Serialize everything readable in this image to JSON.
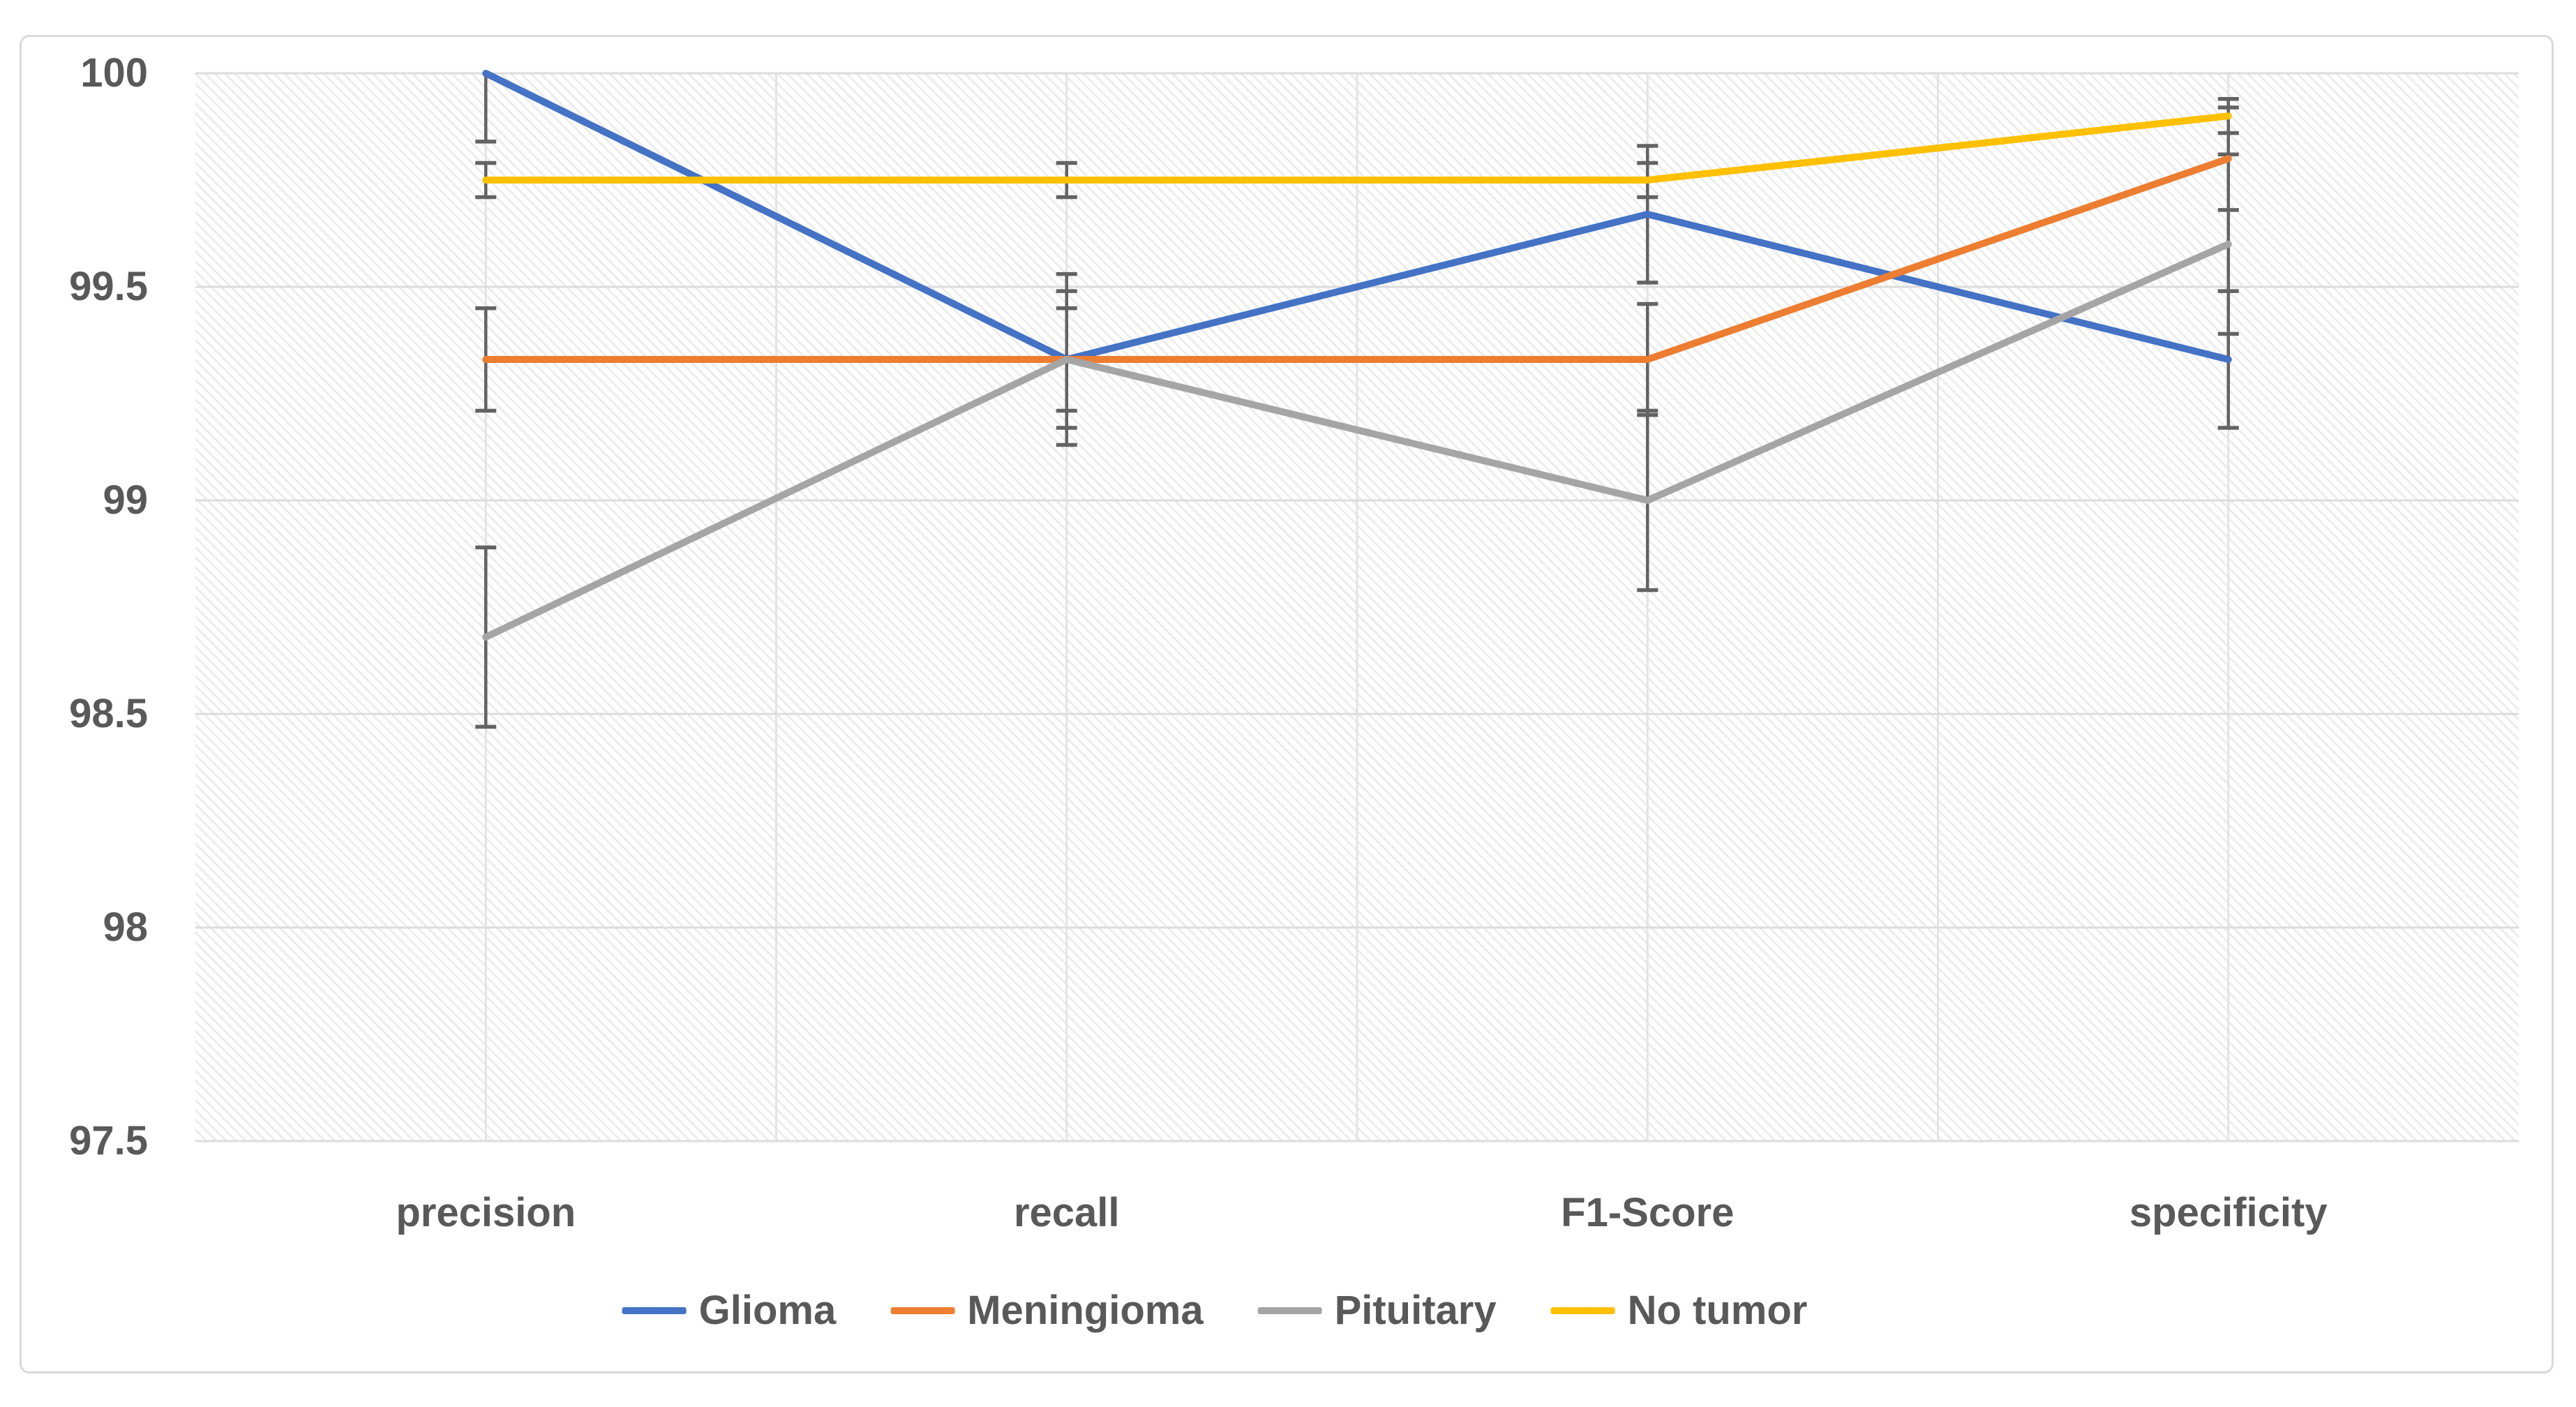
{
  "chart_data": {
    "type": "line",
    "title": "",
    "xlabel": "",
    "ylabel": "",
    "categories": [
      "precision",
      "recall",
      "F1-Score",
      "specificity"
    ],
    "series": [
      {
        "name": "Glioma",
        "color": "#4472C4",
        "values": [
          100.0,
          99.33,
          99.67,
          99.33
        ],
        "errors": [
          0.16,
          0.2,
          0.16,
          0.16
        ]
      },
      {
        "name": "Meningioma",
        "color": "#ED7D31",
        "values": [
          99.33,
          99.33,
          99.33,
          99.8
        ],
        "errors": [
          0.12,
          0.16,
          0.13,
          0.12
        ]
      },
      {
        "name": "Pituitary",
        "color": "#A5A5A5",
        "values": [
          98.68,
          99.33,
          99.0,
          99.6
        ],
        "errors": [
          0.21,
          0.12,
          0.21,
          0.21
        ]
      },
      {
        "name": "No tumor",
        "color": "#FFC000",
        "values": [
          99.75,
          99.75,
          99.75,
          99.9
        ],
        "errors": [
          0.04,
          0.04,
          0.04,
          0.04
        ]
      }
    ],
    "y_ticks": [
      {
        "value": 100,
        "label": "100"
      },
      {
        "value": 99.5,
        "label": "99.5"
      },
      {
        "value": 99,
        "label": "99"
      },
      {
        "value": 98.5,
        "label": "98.5"
      },
      {
        "value": 98,
        "label": "98"
      },
      {
        "value": 97.5,
        "label": "97.5"
      }
    ],
    "ylim": [
      97.5,
      100
    ],
    "y_step": 0.5,
    "grid": true,
    "error_bars": true,
    "legend_position": "bottom",
    "style": {
      "h_grid_color": "#DCDCDC",
      "v_grid_color": "#E3E3E3",
      "error_bar_color": "#636363",
      "text_color": "#595959",
      "hatch_color": "#ECECEC",
      "frame_border_color": "#D9D9D9",
      "background": "#FFFFFF"
    }
  }
}
